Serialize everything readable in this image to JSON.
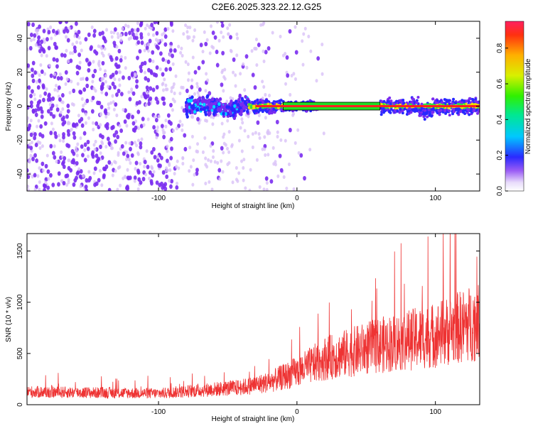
{
  "title": "C2E6.2025.323.22.12.G25",
  "colors": {
    "snr_line": "#ee3333",
    "ridge": "#ff2020",
    "scatter_dark": "#7a2cf0",
    "scatter_light": "#d9c2f7"
  },
  "chart_data": [
    {
      "type": "heatmap",
      "title": "",
      "xlabel": "Height of straight line (km)",
      "ylabel": "Frequency (Hz)",
      "xlim": [
        -195,
        132
      ],
      "ylim": [
        -50,
        50
      ],
      "x_ticks": [
        -100,
        0,
        100
      ],
      "y_ticks": [
        -40,
        -20,
        0,
        20,
        40
      ],
      "colorbar": {
        "label": "Normalized spectral amplitude",
        "range": [
          0,
          0.95
        ],
        "ticks": [
          0.0,
          0.2,
          0.4,
          0.6,
          0.8
        ]
      },
      "features": [
        {
          "region": "noise",
          "x_range": [
            -195,
            -20
          ],
          "description_values": {
            "f_range": [
              -50,
              50
            ]
          }
        },
        {
          "region": "onset",
          "x_range": [
            -80,
            -35
          ],
          "f_center": 0,
          "f_spread": 8
        },
        {
          "region": "signal",
          "x_range": [
            -35,
            132
          ],
          "f_center": 0
        }
      ]
    },
    {
      "type": "line",
      "title": "",
      "xlabel": "Height of straight line (km)",
      "ylabel": "SNR (10 * v/v)",
      "xlim": [
        -195,
        132
      ],
      "ylim": [
        0,
        1670
      ],
      "x_ticks": [
        -100,
        0,
        100
      ],
      "y_ticks": [
        0,
        500,
        1000,
        1500
      ],
      "trend": {
        "x": [
          -195,
          -100,
          -80,
          -40,
          -20,
          0,
          20,
          60,
          100,
          132
        ],
        "y": [
          125,
          110,
          130,
          170,
          220,
          320,
          450,
          580,
          680,
          820
        ]
      }
    }
  ]
}
